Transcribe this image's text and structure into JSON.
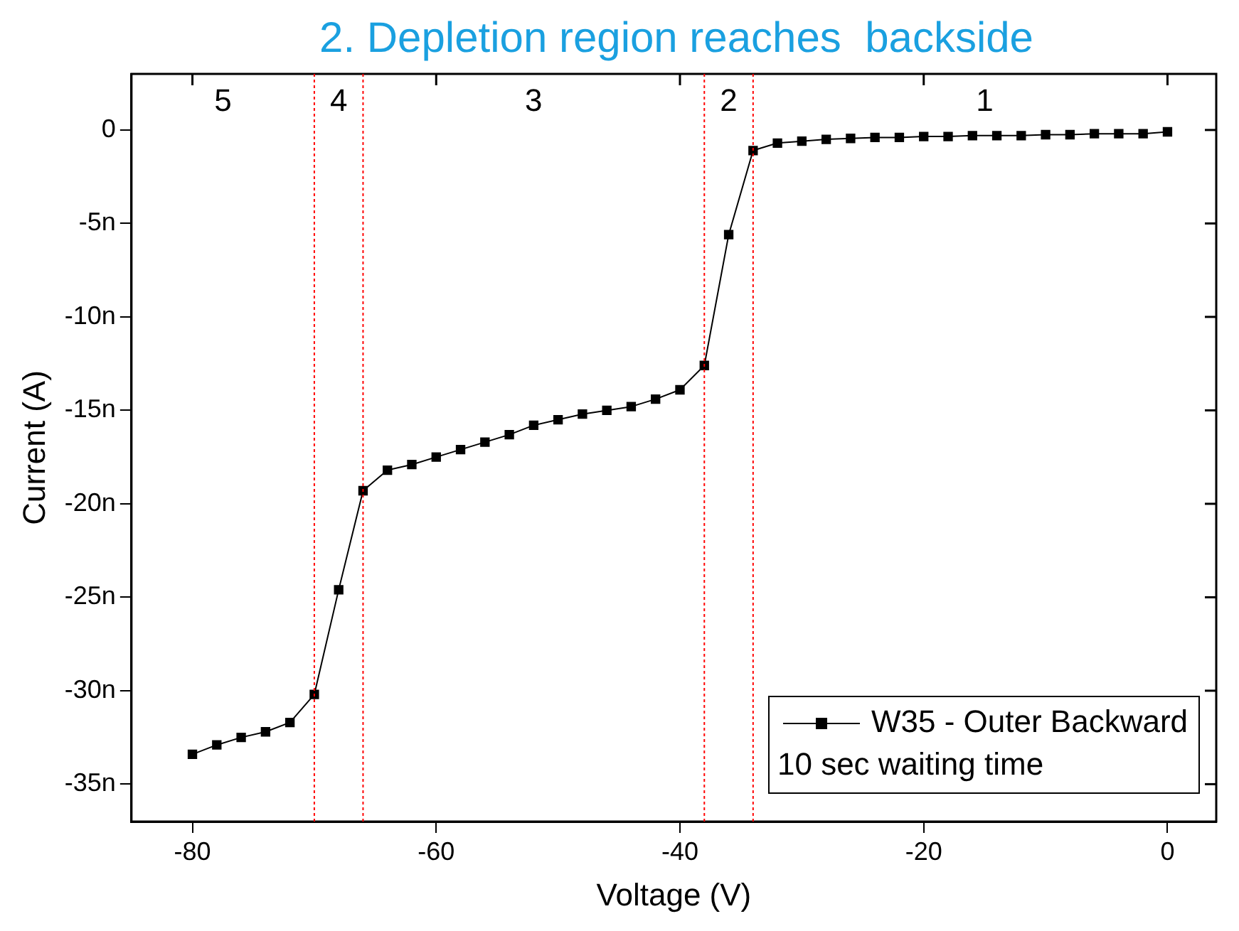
{
  "chart_data": {
    "type": "line",
    "title": "2. Depletion region reaches  backside",
    "xlabel": "Voltage (V)",
    "ylabel": "Current (A)",
    "legend_title": "10 sec waiting time",
    "x": [
      -80,
      -78,
      -76,
      -74,
      -72,
      -70,
      -68,
      -66,
      -64,
      -62,
      -60,
      -58,
      -56,
      -54,
      -52,
      -50,
      -48,
      -46,
      -44,
      -42,
      -40,
      -38,
      -36,
      -34,
      -32,
      -30,
      -28,
      -26,
      -24,
      -22,
      -20,
      -18,
      -16,
      -14,
      -12,
      -10,
      -8,
      -6,
      -4,
      -2,
      0
    ],
    "series": [
      {
        "name": "W35 - Outer Backward",
        "color": "#000000",
        "values": [
          -33.4,
          -32.9,
          -32.5,
          -32.2,
          -31.7,
          -30.2,
          -24.6,
          -19.3,
          -18.2,
          -17.9,
          -17.5,
          -17.1,
          -16.7,
          -16.3,
          -15.8,
          -15.5,
          -15.2,
          -15.0,
          -14.8,
          -14.4,
          -13.9,
          -12.6,
          -5.6,
          -1.1,
          -0.7,
          -0.6,
          -0.5,
          -0.45,
          -0.4,
          -0.4,
          -0.35,
          -0.35,
          -0.3,
          -0.3,
          -0.3,
          -0.25,
          -0.25,
          -0.2,
          -0.2,
          -0.2,
          -0.1
        ]
      }
    ],
    "xlim": [
      -85,
      4
    ],
    "xticks": [
      -80,
      -60,
      -40,
      -20,
      0
    ],
    "ylim": [
      -37,
      3
    ],
    "yticks": [
      {
        "value": 0,
        "label": "0"
      },
      {
        "value": -5,
        "label": "-5n"
      },
      {
        "value": -10,
        "label": "-10n"
      },
      {
        "value": -15,
        "label": "-15n"
      },
      {
        "value": -20,
        "label": "-20n"
      },
      {
        "value": -25,
        "label": "-25n"
      },
      {
        "value": -30,
        "label": "-30n"
      },
      {
        "value": -35,
        "label": "-35n"
      }
    ],
    "ref_lines": [
      {
        "axis": "x",
        "value": -70,
        "color": "#ff0000",
        "line_style": "dotted"
      },
      {
        "axis": "x",
        "value": -66,
        "color": "#ff0000",
        "line_style": "dotted"
      },
      {
        "axis": "x",
        "value": -38,
        "color": "#ff0000",
        "line_style": "dotted"
      },
      {
        "axis": "x",
        "value": -34,
        "color": "#ff0000",
        "line_style": "dotted"
      }
    ],
    "annotations": [
      "5",
      "4",
      "3",
      "2",
      "1"
    ],
    "legend": "bottom right",
    "marker": "square",
    "line_style": "solid",
    "grid": false
  }
}
